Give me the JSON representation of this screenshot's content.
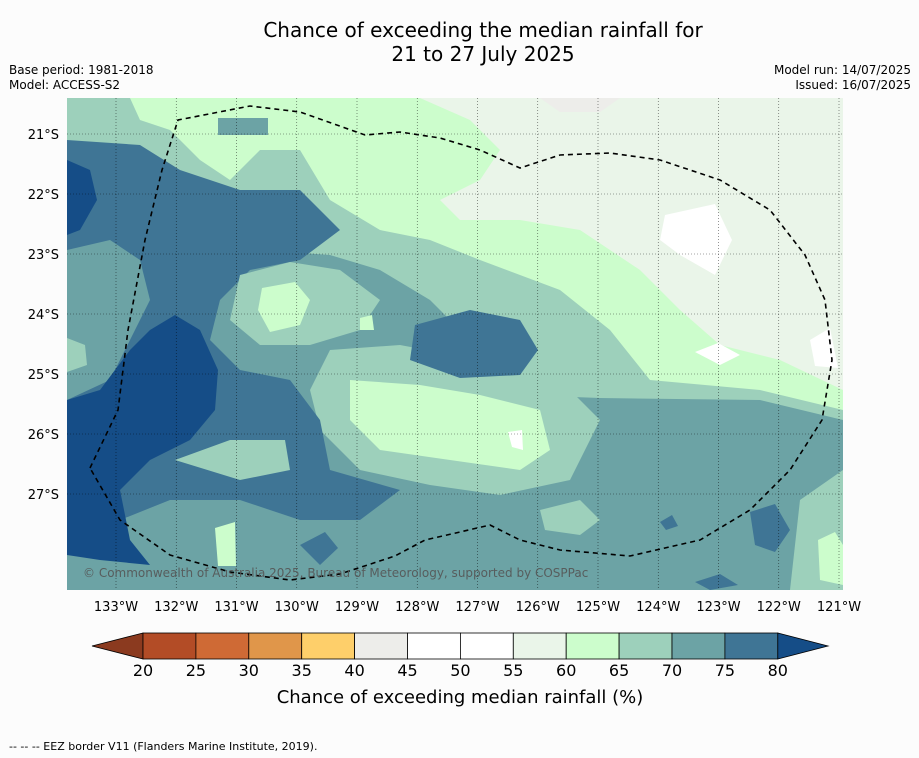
{
  "title_line1": "Chance of exceeding the median rainfall for",
  "title_line2": "21 to 27 July 2025",
  "base_period": "Base period: 1981-2018",
  "model": "Model: ACCESS-S2",
  "model_run": "Model run: 14/07/2025",
  "issued": "Issued: 16/07/2025",
  "copyright": "© Commonwealth of Australia 2025, Bureau of Meteorology, supported by COSPPac",
  "lat_labels": [
    "21°S",
    "22°S",
    "23°S",
    "24°S",
    "25°S",
    "26°S",
    "27°S"
  ],
  "lon_labels": [
    "133°W",
    "132°W",
    "131°W",
    "130°W",
    "129°W",
    "128°W",
    "127°W",
    "126°W",
    "125°W",
    "124°W",
    "123°W",
    "122°W",
    "121°W"
  ],
  "colorbar": {
    "label": "Chance of exceeding median rainfall (%)",
    "ticks": [
      "20",
      "25",
      "30",
      "35",
      "40",
      "45",
      "50",
      "55",
      "60",
      "65",
      "70",
      "75",
      "80"
    ],
    "colors": [
      "#8b3a1f",
      "#b34c26",
      "#cf6a35",
      "#e0964a",
      "#fecf6a",
      "#ededea",
      "#ffffff",
      "#ffffff",
      "#eaf5e9",
      "#ccfdcc",
      "#9dd0bb",
      "#6ca3a5",
      "#3f7595",
      "#154d87"
    ]
  },
  "footer": "--  --  -- EEZ border V11 (Flanders Marine Institute, 2019)."
}
